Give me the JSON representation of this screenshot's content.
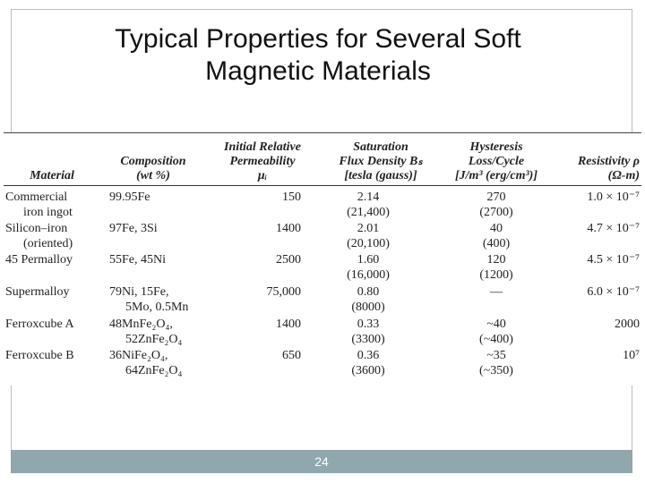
{
  "slide": {
    "title_line1": "Typical Properties for Several Soft",
    "title_line2": "Magnetic Materials",
    "page_number": "24"
  },
  "table": {
    "headers": {
      "material": "Material",
      "composition": [
        "Composition",
        "(wt %)"
      ],
      "permeability": [
        "Initial Relative",
        "Permeability",
        "μᵢ"
      ],
      "saturation": [
        "Saturation",
        "Flux Density Bₛ",
        "[tesla (gauss)]"
      ],
      "hysteresis": [
        "Hysteresis",
        "Loss/Cycle",
        "[J/m³ (erg/cm³)]"
      ],
      "resistivity": [
        "Resistivity ρ",
        "(Ω-m)"
      ]
    },
    "rows": [
      {
        "material": [
          "Commercial",
          "iron ingot"
        ],
        "composition": [
          "99.95Fe"
        ],
        "permeability": "150",
        "saturation": [
          "2.14",
          "(21,400)"
        ],
        "hysteresis": [
          "270",
          "(2700)"
        ],
        "resistivity": "1.0 × 10⁻⁷"
      },
      {
        "material": [
          "Silicon–iron",
          "(oriented)"
        ],
        "composition": [
          "97Fe, 3Si"
        ],
        "permeability": "1400",
        "saturation": [
          "2.01",
          "(20,100)"
        ],
        "hysteresis": [
          "40",
          "(400)"
        ],
        "resistivity": "4.7 × 10⁻⁷"
      },
      {
        "material": [
          "45 Permalloy"
        ],
        "composition": [
          "55Fe, 45Ni"
        ],
        "permeability": "2500",
        "saturation": [
          "1.60",
          "(16,000)"
        ],
        "hysteresis": [
          "120",
          "(1200)"
        ],
        "resistivity": "4.5 × 10⁻⁷"
      },
      {
        "material": [
          "Supermalloy"
        ],
        "composition": [
          "79Ni, 15Fe,",
          "5Mo, 0.5Mn"
        ],
        "permeability": "75,000",
        "saturation": [
          "0.80",
          "(8000)"
        ],
        "hysteresis": [
          "—"
        ],
        "resistivity": "6.0 × 10⁻⁷"
      },
      {
        "material": [
          "Ferroxcube A"
        ],
        "composition": [
          "48MnFe₂O₄,",
          "52ZnFe₂O₄"
        ],
        "permeability": "1400",
        "saturation": [
          "0.33",
          "(3300)"
        ],
        "hysteresis": [
          "~40",
          "(~400)"
        ],
        "resistivity": "2000"
      },
      {
        "material": [
          "Ferroxcube B"
        ],
        "composition": [
          "36NiFe₂O₄,",
          "64ZnFe₂O₄"
        ],
        "permeability": "650",
        "saturation": [
          "0.36",
          "(3600)"
        ],
        "hysteresis": [
          "~35",
          "(~350)"
        ],
        "resistivity": "10⁷"
      }
    ]
  }
}
